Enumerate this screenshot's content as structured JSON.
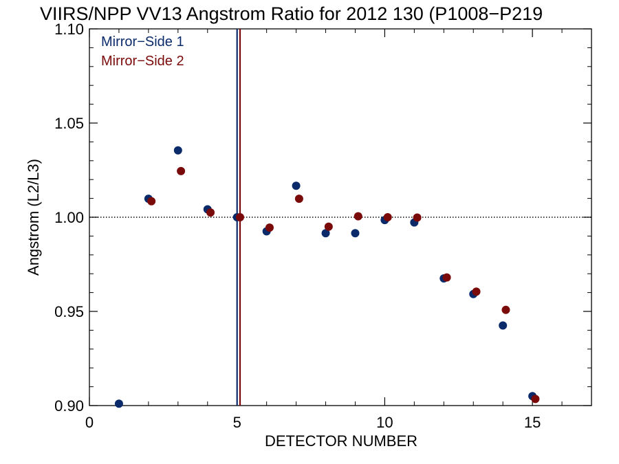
{
  "chart_data": {
    "type": "scatter",
    "title": "VIIRS/NPP VV13 Angstrom Ratio for 2012 130 (P1008−P219",
    "xlabel": "DETECTOR NUMBER",
    "ylabel": "Angstrom (L2/L3)",
    "xlim": [
      0,
      17
    ],
    "ylim": [
      0.9,
      1.1
    ],
    "x_ticks": [
      0,
      5,
      10,
      15
    ],
    "x_tick_labels": [
      "0",
      "5",
      "10",
      "15"
    ],
    "y_ticks": [
      0.9,
      0.95,
      1.0,
      1.05,
      1.1
    ],
    "y_tick_labels": [
      "0.90",
      "0.95",
      "1.00",
      "1.05",
      "1.10"
    ],
    "reference_line": {
      "y": 1.0,
      "style": "dotted"
    },
    "vertical_lines": [
      {
        "x": 5.0,
        "color": "#0a2a6a"
      },
      {
        "x": 5.1,
        "color": "#7a0a0a"
      }
    ],
    "legend_position": "top-left",
    "grid": false,
    "series": [
      {
        "name": "Mirror−Side 1",
        "color": "#0a2a6a",
        "x": [
          1,
          2,
          3,
          4,
          5,
          6,
          7,
          8,
          9,
          10,
          11,
          12,
          13,
          14,
          15
        ],
        "y": [
          0.901,
          1.0098,
          1.0355,
          1.0042,
          1.0,
          0.9925,
          1.0167,
          0.9915,
          0.9915,
          0.9985,
          0.9972,
          0.9675,
          0.9592,
          0.9425,
          0.905
        ]
      },
      {
        "name": "Mirror−Side 2",
        "color": "#7a0a0a",
        "x": [
          2.1,
          3.1,
          4.1,
          5.1,
          6.1,
          7.1,
          8.1,
          9.1,
          10.1,
          11.1,
          12.1,
          13.1,
          14.1,
          15.1
        ],
        "y": [
          1.0085,
          1.0245,
          1.0025,
          1.0,
          0.9945,
          1.0098,
          0.995,
          1.0005,
          1.0,
          0.9998,
          0.968,
          0.9605,
          0.9508,
          0.9035
        ]
      }
    ]
  }
}
